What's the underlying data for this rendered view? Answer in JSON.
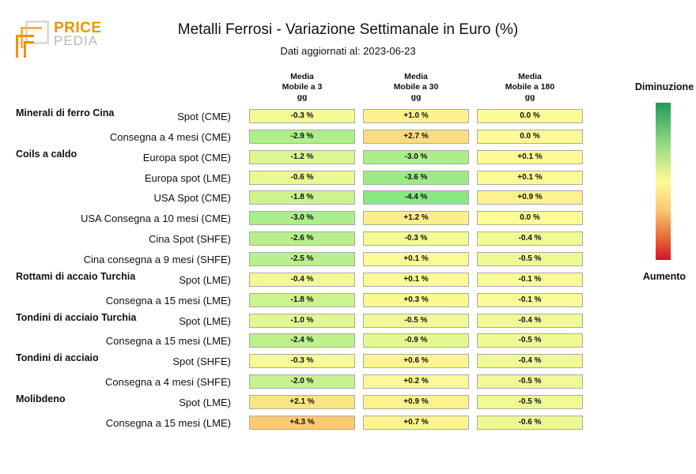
{
  "logo": {
    "word1": "PRICE",
    "word2": "PEDIA"
  },
  "chart_data": {
    "type": "heatmap",
    "title": "Metalli Ferrosi - Variazione Settimanale in Euro (%)",
    "subtitle": "Dati aggiornati al: 2023-06-23",
    "columns": [
      {
        "line1": "Media",
        "line2": "Mobile a 3",
        "line3": "gg"
      },
      {
        "line1": "Media",
        "line2": "Mobile a 30",
        "line3": "gg"
      },
      {
        "line1": "Media",
        "line2": "Mobile a 180",
        "line3": "gg"
      }
    ],
    "legend": {
      "top": "Diminuzione",
      "bottom": "Aumento"
    },
    "rows": [
      {
        "group": "Minerali di ferro Cina",
        "label": "Spot (CME)",
        "values": [
          -0.3,
          1.0,
          0.0
        ],
        "texts": [
          "-0.3 %",
          "+1.0 %",
          "0.0 %"
        ]
      },
      {
        "group": "",
        "label": "Consegna a 4 mesi (CME)",
        "values": [
          -2.9,
          2.7,
          0.0
        ],
        "texts": [
          "-2.9 %",
          "+2.7 %",
          "0.0 %"
        ]
      },
      {
        "group": "Coils a caldo",
        "label": "Europa spot (CME)",
        "values": [
          -1.2,
          -3.0,
          0.1
        ],
        "texts": [
          "-1.2 %",
          "-3.0 %",
          "+0.1 %"
        ]
      },
      {
        "group": "",
        "label": "Europa spot (LME)",
        "values": [
          -0.6,
          -3.6,
          0.1
        ],
        "texts": [
          "-0.6 %",
          "-3.6 %",
          "+0.1 %"
        ]
      },
      {
        "group": "",
        "label": "USA Spot (CME)",
        "values": [
          -1.8,
          -4.4,
          0.9
        ],
        "texts": [
          "-1.8 %",
          "-4.4 %",
          "+0.9 %"
        ]
      },
      {
        "group": "",
        "label": "USA Consegna a 10 mesi (CME)",
        "values": [
          -3.0,
          1.2,
          0.0
        ],
        "texts": [
          "-3.0 %",
          "+1.2 %",
          "0.0 %"
        ]
      },
      {
        "group": "",
        "label": "Cina Spot (SHFE)",
        "values": [
          -2.6,
          -0.3,
          -0.4
        ],
        "texts": [
          "-2.6 %",
          "-0.3 %",
          "-0.4 %"
        ]
      },
      {
        "group": "",
        "label": "Cina consegna a 9 mesi (SHFE)",
        "values": [
          -2.5,
          0.1,
          -0.5
        ],
        "texts": [
          "-2.5 %",
          "+0.1 %",
          "-0.5 %"
        ]
      },
      {
        "group": "Rottami di accaio Turchia",
        "label": "Spot (LME)",
        "values": [
          -0.4,
          0.1,
          -0.1
        ],
        "texts": [
          "-0.4 %",
          "+0.1 %",
          "-0.1 %"
        ]
      },
      {
        "group": "",
        "label": "Consegna a 15 mesi (LME)",
        "values": [
          -1.8,
          0.3,
          -0.1
        ],
        "texts": [
          "-1.8 %",
          "+0.3 %",
          "-0.1 %"
        ]
      },
      {
        "group": "Tondini di acciaio Turchia",
        "label": "Spot (LME)",
        "values": [
          -1.0,
          -0.5,
          -0.4
        ],
        "texts": [
          "-1.0 %",
          "-0.5 %",
          "-0.4 %"
        ]
      },
      {
        "group": "",
        "label": "Consegna a 15 mesi (LME)",
        "values": [
          -2.4,
          -0.9,
          -0.5
        ],
        "texts": [
          "-2.4 %",
          "-0.9 %",
          "-0.5 %"
        ]
      },
      {
        "group": "Tondini di acciaio",
        "label": "Spot (SHFE)",
        "values": [
          -0.3,
          0.6,
          -0.4
        ],
        "texts": [
          "-0.3 %",
          "+0.6 %",
          "-0.4 %"
        ]
      },
      {
        "group": "",
        "label": "Consegna a 4 mesi (SHFE)",
        "values": [
          -2.0,
          0.2,
          -0.5
        ],
        "texts": [
          "-2.0 %",
          "+0.2 %",
          "-0.5 %"
        ]
      },
      {
        "group": "Molibdeno",
        "label": "Spot (LME)",
        "values": [
          2.1,
          0.9,
          -0.5
        ],
        "texts": [
          "+2.1 %",
          "+0.9 %",
          "-0.5 %"
        ]
      },
      {
        "group": "",
        "label": "Consegna a 15 mesi (LME)",
        "values": [
          4.3,
          0.7,
          -0.6
        ],
        "texts": [
          "+4.3 %",
          "+0.7 %",
          "-0.6 %"
        ]
      }
    ]
  }
}
